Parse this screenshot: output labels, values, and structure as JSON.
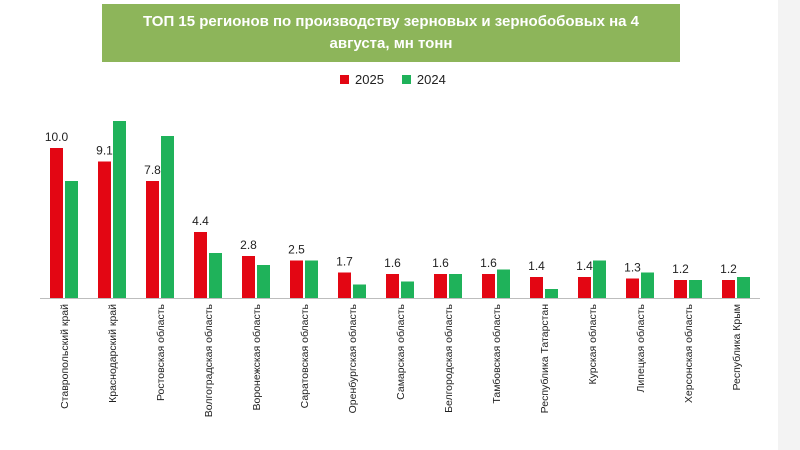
{
  "title": "ТОП 15 регионов по производству зерновых и зернобобовых на 4 августа, мн тонн",
  "legend": [
    {
      "label": "2025",
      "color": "#e30613"
    },
    {
      "label": "2024",
      "color": "#1fb25a"
    }
  ],
  "chart_data": {
    "type": "bar",
    "categories": [
      "Ставропольский край",
      "Краснодарский край",
      "Ростовская область",
      "Волгоградская область",
      "Воронежская область",
      "Саратовская область",
      "Оренбургская область",
      "Самарская область",
      "Белгородская область",
      "Тамбовская область",
      "Республика Татарстан",
      "Курская область",
      "Липецкая область",
      "Херсонская область",
      "Республика Крым"
    ],
    "series": [
      {
        "name": "2025",
        "color": "#e30613",
        "values": [
          10.0,
          9.1,
          7.8,
          4.4,
          2.8,
          2.5,
          1.7,
          1.6,
          1.6,
          1.6,
          1.4,
          1.4,
          1.3,
          1.2,
          1.2
        ],
        "labels": [
          "10.0",
          "9.1",
          "7.8",
          "4.4",
          "2.8",
          "2.5",
          "1.7",
          "1.6",
          "1.6",
          "1.6",
          "1.4",
          "1.4",
          "1.3",
          "1.2",
          "1.2"
        ]
      },
      {
        "name": "2024",
        "color": "#1fb25a",
        "values": [
          7.8,
          11.8,
          10.8,
          3.0,
          2.2,
          2.5,
          0.9,
          1.1,
          1.6,
          1.9,
          0.6,
          2.5,
          1.7,
          1.2,
          1.4
        ]
      }
    ],
    "ylim": [
      0,
      12
    ],
    "grid": false,
    "legend_position": "top-center"
  }
}
